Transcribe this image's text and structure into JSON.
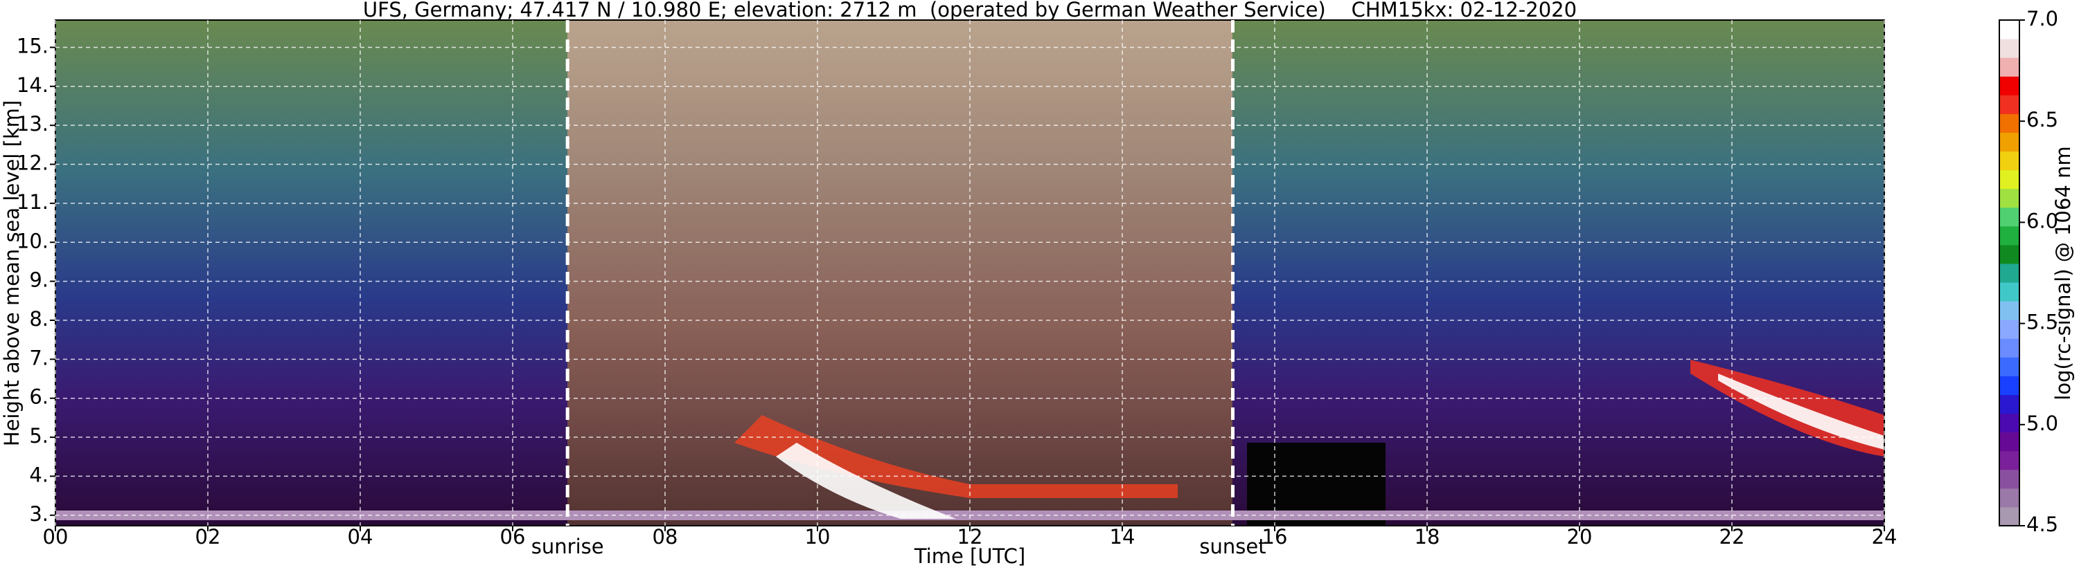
{
  "chart_data": {
    "type": "heatmap",
    "title": "UFS, Germany; 47.417 N / 10.980 E; elevation: 2712 m  (operated by German Weather Service)    CHM15kx: 02-12-2020",
    "x_label": "Time [UTC]",
    "y_label": "Height above mean sea level [km]",
    "xlim": [
      0,
      24
    ],
    "xticks": [
      {
        "value": 0,
        "label": "00"
      },
      {
        "value": 2,
        "label": "02"
      },
      {
        "value": 4,
        "label": "04"
      },
      {
        "value": 6,
        "label": "06"
      },
      {
        "value": 8,
        "label": "08"
      },
      10,
      12,
      14,
      16,
      18,
      20,
      22,
      24
    ],
    "ylim": [
      2.73,
      15.7
    ],
    "yticks": [
      {
        "value": 3,
        "label": "3."
      },
      {
        "value": 4,
        "label": "4."
      },
      {
        "value": 5,
        "label": "5."
      },
      {
        "value": 6,
        "label": "6."
      },
      {
        "value": 7,
        "label": "7."
      },
      {
        "value": 8,
        "label": "8."
      },
      {
        "value": 9,
        "label": "9."
      },
      {
        "value": 10,
        "label": "10."
      },
      {
        "value": 11,
        "label": "11."
      },
      {
        "value": 12,
        "label": "12."
      },
      {
        "value": 13,
        "label": "13."
      },
      {
        "value": 14,
        "label": "14."
      },
      {
        "value": 15,
        "label": "15."
      }
    ],
    "grid": true,
    "annotations": [
      {
        "label": "sunrise",
        "x": 6.72
      },
      {
        "label": "sunset",
        "x": 15.45
      }
    ],
    "colorbar": {
      "label": "log(rc-signal) @ 1064 nm",
      "lim": [
        4.5,
        7.0
      ],
      "ticks": [
        4.5,
        {
          "value": 5,
          "label": "5.0"
        },
        5.5,
        {
          "value": 6,
          "label": "6.0"
        },
        6.5,
        {
          "value": 7,
          "label": "7.0"
        }
      ],
      "colors": [
        "#a898b0",
        "#9a78a8",
        "#8a50a0",
        "#7a209a",
        "#660a96",
        "#4a0ab0",
        "#2a18d0",
        "#1a40ff",
        "#3a6aff",
        "#6a8cff",
        "#8aa8ff",
        "#80c0f0",
        "#40c8c8",
        "#20a890",
        "#108a20",
        "#20b040",
        "#50d070",
        "#a0e040",
        "#e0f020",
        "#f0d010",
        "#f0a000",
        "#f07000",
        "#f03020",
        "#f00000",
        "#f0b0b0",
        "#f0e0e0",
        "#ffffff"
      ]
    }
  }
}
